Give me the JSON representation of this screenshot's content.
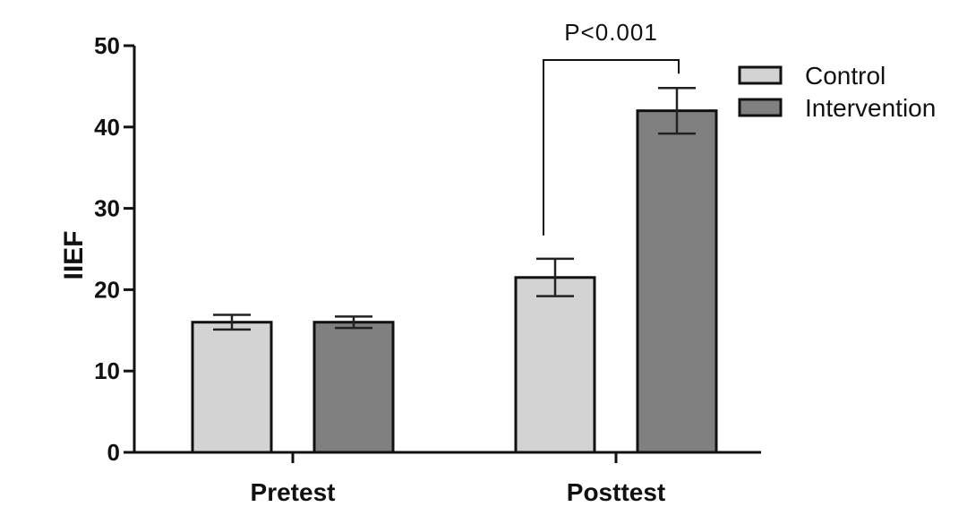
{
  "chart_data": {
    "type": "bar",
    "title": "",
    "xlabel": "",
    "ylabel": "IIEF",
    "ylim": [
      0,
      50
    ],
    "yticks": [
      0,
      10,
      20,
      30,
      40,
      50
    ],
    "categories": [
      "Pretest",
      "Posttest"
    ],
    "series": [
      {
        "name": "Control",
        "values": [
          16.0,
          21.5
        ],
        "errors": [
          0.9,
          2.3
        ],
        "color": "#d3d3d3"
      },
      {
        "name": "Intervention",
        "values": [
          16.0,
          42.0
        ],
        "errors": [
          0.7,
          2.8
        ],
        "color": "#808080"
      }
    ],
    "legend_position": "top-right",
    "grid": false,
    "annotation": {
      "text": "P<0.001",
      "category": "Posttest"
    }
  }
}
